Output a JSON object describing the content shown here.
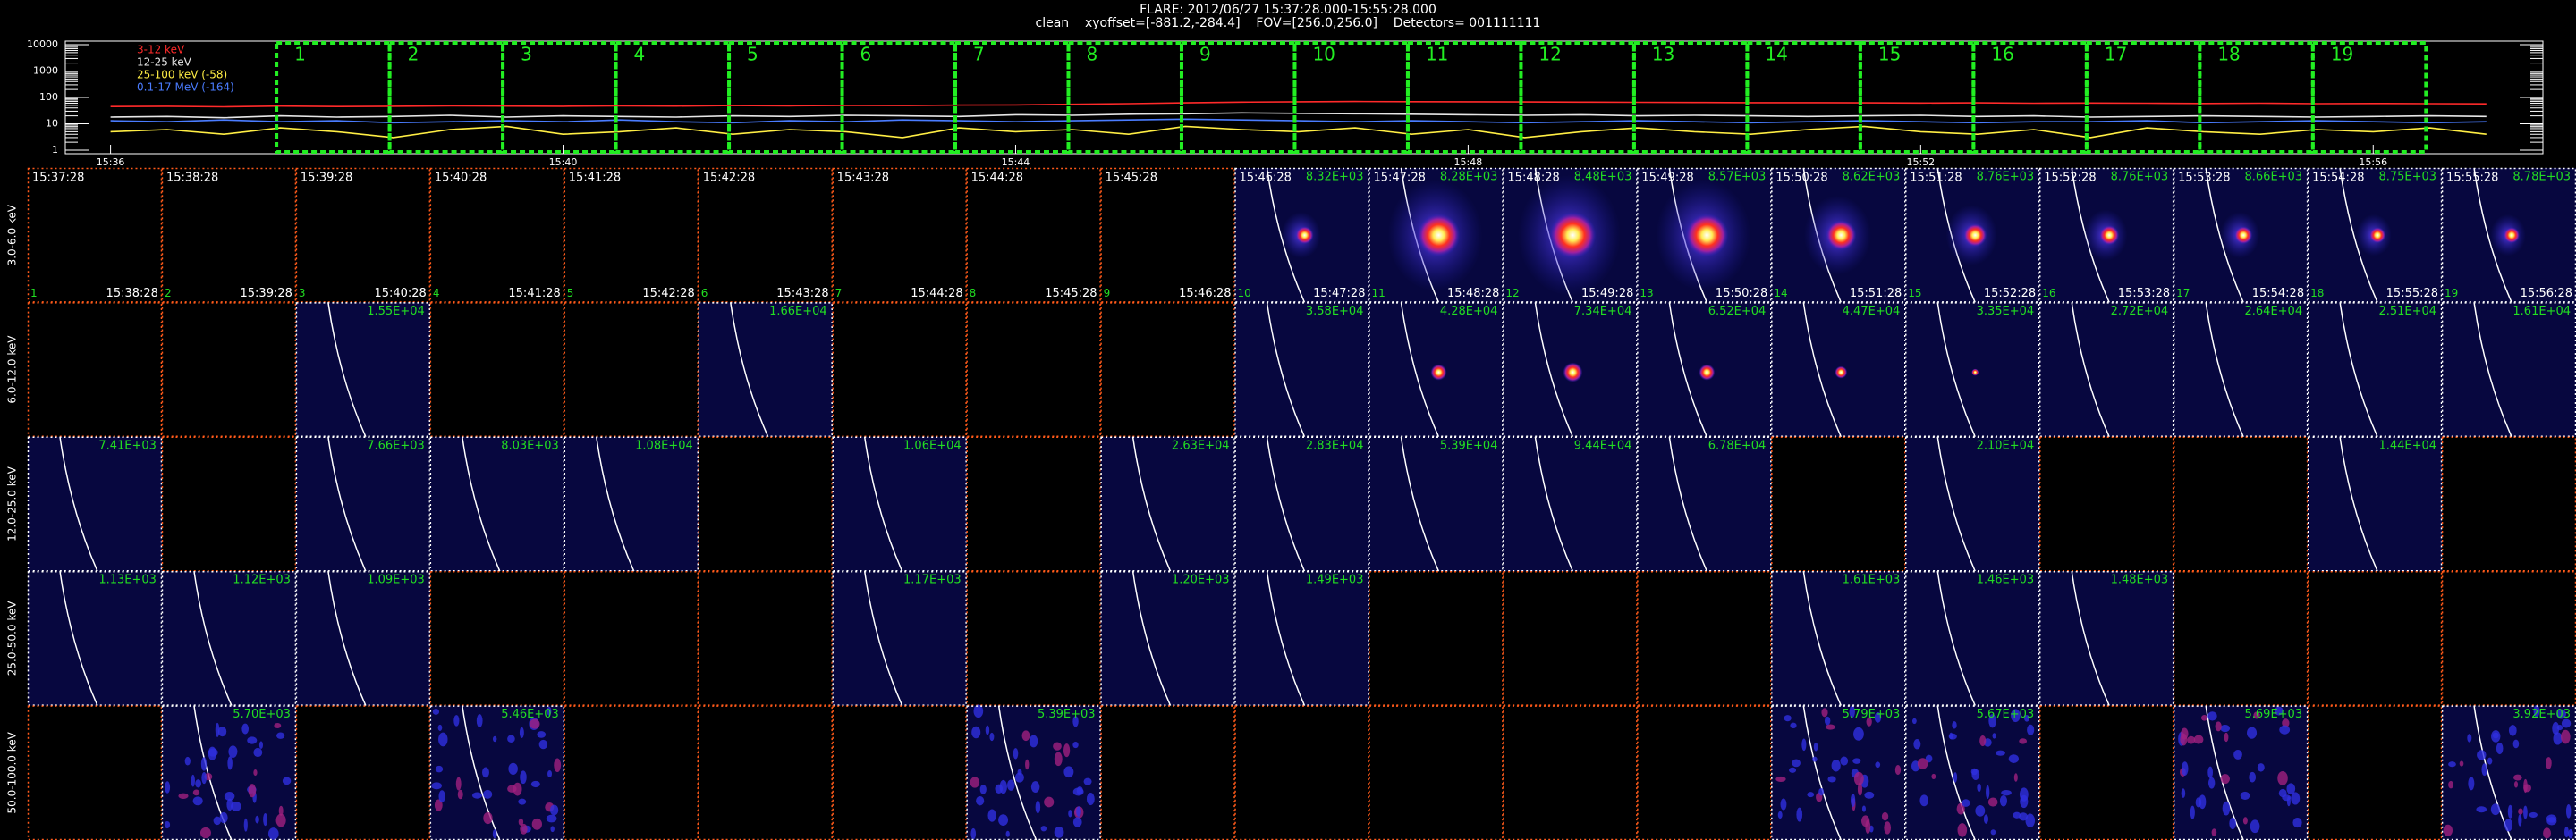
{
  "header": {
    "title": "FLARE: 2012/06/27 15:37:28.000-15:55:28.000",
    "subtitle": "clean    xyoffset=[-881.2,-284.4]    FOV=[256.0,256.0]    Detectors= 001111111"
  },
  "chart_data": {
    "type": "line",
    "log_y": true,
    "x": [
      36,
      36.5,
      37,
      37.5,
      38,
      38.5,
      39,
      39.5,
      40,
      40.5,
      41,
      41.5,
      42,
      42.5,
      43,
      43.5,
      44,
      44.5,
      45,
      45.5,
      46,
      46.5,
      47,
      47.5,
      48,
      48.5,
      49,
      49.5,
      50,
      50.5,
      51,
      51.5,
      52,
      52.5,
      53,
      53.5,
      54,
      54.5,
      55,
      55.5,
      56,
      56.5,
      57
    ],
    "xlim": [
      35.6,
      57.5
    ],
    "xticks": [
      {
        "value": 36,
        "label": "15:36"
      },
      {
        "value": 40,
        "label": "15:40"
      },
      {
        "value": 44,
        "label": "15:44"
      },
      {
        "value": 48,
        "label": "15:48"
      },
      {
        "value": 52,
        "label": "15:52"
      },
      {
        "value": 56,
        "label": "15:56"
      }
    ],
    "ylim": [
      1,
      10000
    ],
    "yticks": [
      1,
      10,
      100,
      1000,
      10000
    ],
    "series": [
      {
        "name": "3-12 keV",
        "color": "#ff2a2a",
        "values": [
          45,
          46,
          44,
          47,
          45,
          46,
          48,
          47,
          46,
          48,
          47,
          49,
          48,
          50,
          49,
          51,
          52,
          55,
          58,
          62,
          66,
          68,
          70,
          69,
          68,
          67,
          66,
          65,
          64,
          63,
          63,
          62,
          61,
          62,
          60,
          61,
          60,
          59,
          60,
          58,
          59,
          58,
          57
        ]
      },
      {
        "name": "12-25 keV",
        "color": "#e6e6e6",
        "values": [
          18,
          19,
          17,
          20,
          18,
          19,
          21,
          18,
          20,
          19,
          18,
          20,
          19,
          21,
          20,
          19,
          22,
          21,
          23,
          24,
          26,
          25,
          24,
          23,
          22,
          21,
          22,
          20,
          21,
          20,
          19,
          20,
          21,
          19,
          20,
          18,
          19,
          20,
          19,
          18,
          19,
          20,
          19
        ]
      },
      {
        "name": "25-100 keV (-58)",
        "color": "#ffee44",
        "values": [
          5,
          6,
          4,
          7,
          5,
          3,
          6,
          8,
          4,
          5,
          7,
          4,
          6,
          5,
          3,
          7,
          5,
          6,
          4,
          8,
          6,
          5,
          7,
          4,
          6,
          3,
          5,
          7,
          5,
          4,
          6,
          8,
          5,
          4,
          6,
          3,
          7,
          5,
          4,
          6,
          5,
          7,
          4
        ]
      },
      {
        "name": "0.1-17 MeV (-164)",
        "color": "#4a7cff",
        "values": [
          13,
          12,
          14,
          12,
          13,
          11,
          12,
          13,
          12,
          14,
          12,
          11,
          13,
          12,
          14,
          13,
          12,
          13,
          14,
          15,
          14,
          13,
          12,
          13,
          12,
          11,
          12,
          13,
          12,
          11,
          12,
          13,
          12,
          11,
          12,
          12,
          13,
          11,
          12,
          13,
          12,
          11,
          12
        ]
      }
    ],
    "interval_color": "#22ee22",
    "intervals": [
      {
        "label": "1",
        "start": 37.4667,
        "end": 38.4667
      },
      {
        "label": "2",
        "start": 38.4667,
        "end": 39.4667
      },
      {
        "label": "3",
        "start": 39.4667,
        "end": 40.4667
      },
      {
        "label": "4",
        "start": 40.4667,
        "end": 41.4667
      },
      {
        "label": "5",
        "start": 41.4667,
        "end": 42.4667
      },
      {
        "label": "6",
        "start": 42.4667,
        "end": 43.4667
      },
      {
        "label": "7",
        "start": 43.4667,
        "end": 44.4667
      },
      {
        "label": "8",
        "start": 44.4667,
        "end": 45.4667
      },
      {
        "label": "9",
        "start": 45.4667,
        "end": 46.4667
      },
      {
        "label": "10",
        "start": 46.4667,
        "end": 47.4667
      },
      {
        "label": "11",
        "start": 47.4667,
        "end": 48.4667
      },
      {
        "label": "12",
        "start": 48.4667,
        "end": 49.4667
      },
      {
        "label": "13",
        "start": 49.4667,
        "end": 50.4667
      },
      {
        "label": "14",
        "start": 50.4667,
        "end": 51.4667
      },
      {
        "label": "15",
        "start": 51.4667,
        "end": 52.4667
      },
      {
        "label": "16",
        "start": 52.4667,
        "end": 53.4667
      },
      {
        "label": "17",
        "start": 53.4667,
        "end": 54.4667
      },
      {
        "label": "18",
        "start": 54.4667,
        "end": 55.4667
      },
      {
        "label": "19",
        "start": 55.4667,
        "end": 56.4667
      }
    ]
  },
  "energy_bands": [
    "3.0-6.0 keV",
    "6.0-12.0 keV",
    "12.0-25.0 keV",
    "25.0-50.0 keV",
    "50.0-100.0 keV"
  ],
  "columns": [
    {
      "start": "15:37:28",
      "end": "15:38:28",
      "index": "1"
    },
    {
      "start": "15:38:28",
      "end": "15:39:28",
      "index": "2"
    },
    {
      "start": "15:39:28",
      "end": "15:40:28",
      "index": "3"
    },
    {
      "start": "15:40:28",
      "end": "15:41:28",
      "index": "4"
    },
    {
      "start": "15:41:28",
      "end": "15:42:28",
      "index": "5"
    },
    {
      "start": "15:42:28",
      "end": "15:43:28",
      "index": "6"
    },
    {
      "start": "15:43:28",
      "end": "15:44:28",
      "index": "7"
    },
    {
      "start": "15:44:28",
      "end": "15:45:28",
      "index": "8"
    },
    {
      "start": "15:45:28",
      "end": "15:46:28",
      "index": "9"
    },
    {
      "start": "15:46:28",
      "end": "15:47:28",
      "index": "10"
    },
    {
      "start": "15:47:28",
      "end": "15:48:28",
      "index": "11"
    },
    {
      "start": "15:48:28",
      "end": "15:49:28",
      "index": "12"
    },
    {
      "start": "15:49:28",
      "end": "15:50:28",
      "index": "13"
    },
    {
      "start": "15:50:28",
      "end": "15:51:28",
      "index": "14"
    },
    {
      "start": "15:51:28",
      "end": "15:52:28",
      "index": "15"
    },
    {
      "start": "15:52:28",
      "end": "15:53:28",
      "index": "16"
    },
    {
      "start": "15:53:28",
      "end": "15:54:28",
      "index": "17"
    },
    {
      "start": "15:54:28",
      "end": "15:55:28",
      "index": "18"
    },
    {
      "start": "15:55:28",
      "end": "15:56:28",
      "index": "19"
    }
  ],
  "peaks": [
    [
      null,
      null,
      null,
      null,
      null,
      null,
      null,
      null,
      null,
      "8.32E+03",
      "8.28E+03",
      "8.48E+03",
      "8.57E+03",
      "8.62E+03",
      "8.76E+03",
      "8.76E+03",
      "8.66E+03",
      "8.75E+03",
      "8.78E+03"
    ],
    [
      null,
      null,
      "1.55E+04",
      null,
      null,
      "1.66E+04",
      null,
      null,
      null,
      "3.58E+04",
      "4.28E+04",
      "7.34E+04",
      "6.52E+04",
      "4.47E+04",
      "3.35E+04",
      "2.72E+04",
      "2.64E+04",
      "2.51E+04",
      "1.61E+04"
    ],
    [
      "7.41E+03",
      null,
      "7.66E+03",
      "8.03E+03",
      "1.08E+04",
      null,
      "1.06E+04",
      null,
      "2.63E+04",
      "2.83E+04",
      "5.39E+04",
      "9.44E+04",
      "6.78E+04",
      null,
      "2.10E+04",
      null,
      null,
      "1.44E+04",
      null
    ],
    [
      "1.13E+03",
      "1.12E+03",
      "1.09E+03",
      null,
      null,
      null,
      "1.17E+03",
      null,
      "1.20E+03",
      "1.49E+03",
      null,
      null,
      null,
      "1.61E+03",
      "1.46E+03",
      "1.48E+03",
      null,
      null,
      null
    ],
    [
      null,
      "5.70E+03",
      null,
      "5.46E+03",
      null,
      null,
      null,
      "5.39E+03",
      null,
      null,
      null,
      null,
      null,
      "5.79E+03",
      "5.67E+03",
      null,
      "5.69E+03",
      null,
      "3.92E+03"
    ]
  ]
}
